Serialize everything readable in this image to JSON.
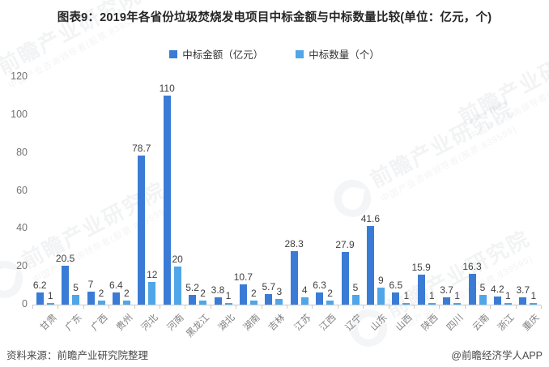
{
  "title": "图表9：2019年各省份垃圾焚烧发电项目中标金额与中标数量比较(单位：亿元，个)",
  "legend": {
    "amount_label": "中标金额（亿元）",
    "count_label": "中标数量（个）"
  },
  "footer": {
    "source": "资料来源：前瞻产业研究院整理",
    "credit": "@前瞻经济学人APP"
  },
  "watermark": {
    "brand_text": "前瞻产业研究院",
    "sub_text": "中国产业咨询领导者(股票:839599)"
  },
  "colors": {
    "amount_bar": "#3A7CD5",
    "count_bar": "#4FA6E8",
    "axis": "#C9C9C9"
  },
  "chart_data": {
    "type": "bar",
    "title": "图表9：2019年各省份垃圾焚烧发电项目中标金额与中标数量比较(单位：亿元，个)",
    "xlabel": "",
    "ylabel": "",
    "ylim": [
      0,
      120
    ],
    "yticks": [
      0,
      20,
      40,
      60,
      80,
      100,
      120
    ],
    "grid": false,
    "legend_position": "top",
    "categories": [
      "甘肃",
      "广东",
      "广西",
      "贵州",
      "河北",
      "河南",
      "黑龙江",
      "湖北",
      "湖南",
      "吉林",
      "江苏",
      "江西",
      "辽宁",
      "山东",
      "山西",
      "陕西",
      "四川",
      "云南",
      "浙江",
      "重庆"
    ],
    "series": [
      {
        "name": "中标金额（亿元）",
        "color": "#3A7CD5",
        "values": [
          6.2,
          20.5,
          7,
          6.4,
          78.7,
          110,
          5.2,
          3.8,
          10.7,
          5.7,
          28.3,
          6.3,
          27.9,
          41.6,
          6.5,
          15.9,
          3.7,
          16.3,
          4.2,
          3.7
        ]
      },
      {
        "name": "中标数量（个）",
        "color": "#4FA6E8",
        "values": [
          1,
          5,
          2,
          2,
          12,
          20,
          2,
          1,
          2,
          3,
          4,
          2,
          5,
          9,
          1,
          1,
          1,
          5,
          1,
          1
        ]
      }
    ]
  }
}
